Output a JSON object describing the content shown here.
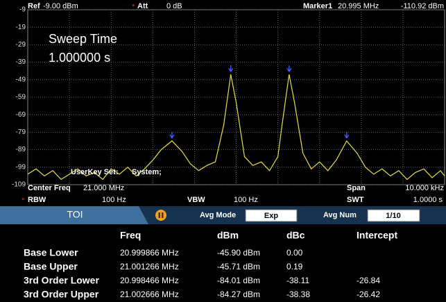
{
  "header": {
    "ref_label": "Ref",
    "ref_value": "-9.00 dBm",
    "att_flag": "*",
    "att_label": "Att",
    "att_value": "0 dB",
    "marker_label": "Marker1",
    "marker_freq": "20.995 MHz",
    "marker_level": "-110.92 dBm"
  },
  "overlay": {
    "sweep_label": "Sweep Time",
    "sweep_value": "1.000000 s",
    "userkey_label": "UserKey Set:",
    "userkey_value": "System;"
  },
  "chart_data": {
    "type": "line",
    "color": "#e8e040",
    "ylim": [
      -109,
      -9
    ],
    "yticks": [
      -9,
      -19,
      -29,
      -39,
      -49,
      -59,
      -69,
      -79,
      -89,
      -99,
      -109
    ],
    "grid": true,
    "xlim": [
      20.995,
      21.005
    ],
    "x": [
      20.995,
      20.9952,
      20.9954,
      20.9956,
      20.9958,
      20.996,
      20.9962,
      20.9964,
      20.9966,
      20.9968,
      20.997,
      20.9972,
      20.9974,
      20.9976,
      20.9978,
      20.998,
      20.9982,
      20.99846,
      20.9987,
      20.9989,
      20.9991,
      20.9993,
      20.9995,
      20.9997,
      20.99987,
      21.0,
      21.0002,
      21.0004,
      21.0006,
      21.0008,
      21.001,
      21.0011,
      21.00127,
      21.0014,
      21.0016,
      21.0018,
      21.002,
      21.0022,
      21.0024,
      21.00265,
      21.0029,
      21.0031,
      21.0033,
      21.0035,
      21.0037,
      21.0039,
      21.0041,
      21.0043,
      21.0045,
      21.0047,
      21.0049,
      21.005
    ],
    "values": [
      -103,
      -100,
      -104,
      -101,
      -106,
      -103,
      -100,
      -104,
      -102,
      -106,
      -100,
      -103,
      -99,
      -104,
      -100,
      -95,
      -89,
      -84,
      -90,
      -97,
      -101,
      -98,
      -96,
      -75,
      -46,
      -62,
      -93,
      -98,
      -96,
      -101,
      -93,
      -75,
      -46,
      -62,
      -91,
      -100,
      -96,
      -101,
      -95,
      -84,
      -91,
      -99,
      -103,
      -100,
      -104,
      -101,
      -106,
      -102,
      -100,
      -105,
      -101,
      -104
    ]
  },
  "settings": {
    "center_label": "Center Freq",
    "center_value": "21.000 MHz",
    "span_label": "Span",
    "span_value": "10.000 kHz",
    "rbw_flag": "*",
    "rbw_label": "RBW",
    "rbw_value": "100 Hz",
    "vbw_label": "VBW",
    "vbw_value": "100 Hz",
    "swt_label": "SWT",
    "swt_value": "1.0000 s"
  },
  "toolbar": {
    "tab": "TOI",
    "avg_mode_label": "Avg Mode",
    "avg_mode_value": "Exp",
    "avg_num_label": "Avg Num",
    "avg_num_value": "1/10"
  },
  "table": {
    "headers": [
      "Freq",
      "dBm",
      "dBc",
      "Intercept"
    ],
    "rows": [
      [
        "Base Lower",
        "20.999866 MHz",
        "-45.90 dBm",
        "0.00",
        ""
      ],
      [
        "Base Upper",
        "21.001266 MHz",
        "-45.71 dBm",
        "0.19",
        ""
      ],
      [
        "3rd Order Lower",
        "20.998466 MHz",
        "-84.01 dBm",
        "-38.11",
        "-26.84"
      ],
      [
        "3rd Order Upper",
        "21.002666 MHz",
        "-84.27 dBm",
        "-38.38",
        "-26.42"
      ]
    ]
  }
}
